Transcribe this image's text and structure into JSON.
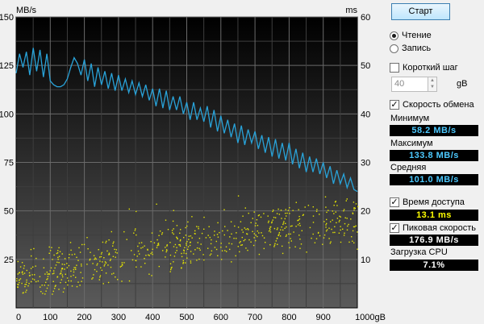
{
  "chart": {
    "left_unit": "MB/s",
    "right_unit": "ms",
    "x_unit_suffix": "gB",
    "y_left_ticks": [
      "25",
      "50",
      "75",
      "100",
      "125",
      "150"
    ],
    "y_right_ticks": [
      "10",
      "20",
      "30",
      "40",
      "50",
      "60"
    ],
    "x_ticks": [
      "0",
      "100",
      "200",
      "300",
      "400",
      "500",
      "600",
      "700",
      "800",
      "900",
      "1000gB"
    ],
    "colors": {
      "transfer": "#29a3d9",
      "access": "#e6e600",
      "background_top": "#000000",
      "background_bottom": "#5a5a5a",
      "grid": "#6a6a6a"
    }
  },
  "chart_data": {
    "type": "line",
    "xlabel": "gB",
    "ylabel": "MB/s",
    "xlim": [
      0,
      1000
    ],
    "ylim": [
      0,
      150
    ],
    "y2lim": [
      0,
      60
    ],
    "grid": true,
    "series": [
      {
        "name": "Скорость обмена",
        "axis": "left",
        "x": [
          0,
          10,
          20,
          30,
          40,
          50,
          60,
          70,
          80,
          90,
          100,
          110,
          120,
          130,
          140,
          150,
          160,
          170,
          180,
          190,
          200,
          210,
          220,
          230,
          240,
          250,
          260,
          270,
          280,
          290,
          300,
          310,
          320,
          330,
          340,
          350,
          360,
          370,
          380,
          390,
          400,
          410,
          420,
          430,
          440,
          450,
          460,
          470,
          480,
          490,
          500,
          510,
          520,
          530,
          540,
          550,
          560,
          570,
          580,
          590,
          600,
          610,
          620,
          630,
          640,
          650,
          660,
          670,
          680,
          690,
          700,
          710,
          720,
          730,
          740,
          750,
          760,
          770,
          780,
          790,
          800,
          810,
          820,
          830,
          840,
          850,
          860,
          870,
          880,
          890,
          900,
          910,
          920,
          930,
          940,
          950,
          960,
          970,
          980,
          990,
          1000
        ],
        "y": [
          121,
          131,
          124,
          132,
          120,
          134,
          122,
          133,
          119,
          131,
          117,
          115,
          114,
          114,
          115,
          118,
          124,
          129,
          126,
          120,
          128,
          117,
          126,
          114,
          124,
          115,
          122,
          113,
          121,
          112,
          120,
          112,
          118,
          111,
          117,
          110,
          116,
          109,
          115,
          107,
          113,
          104,
          113,
          103,
          112,
          102,
          109,
          102,
          109,
          100,
          106,
          97,
          106,
          97,
          103,
          96,
          104,
          93,
          102,
          91,
          99,
          90,
          97,
          88,
          95,
          85,
          94,
          84,
          92,
          85,
          91,
          82,
          89,
          80,
          88,
          78,
          87,
          77,
          85,
          76,
          85,
          74,
          82,
          72,
          80,
          70,
          78,
          70,
          77,
          69,
          75,
          67,
          73,
          64,
          71,
          64,
          69,
          62,
          67,
          61,
          60
        ]
      },
      {
        "name": "Время доступа",
        "axis": "right",
        "mode": "scatter",
        "seed": 7,
        "count": 650,
        "x_range": [
          0,
          1000
        ],
        "trend_ms": [
          [
            0,
            6
          ],
          [
            200,
            9.5
          ],
          [
            400,
            12
          ],
          [
            600,
            15
          ],
          [
            800,
            17
          ],
          [
            1000,
            18
          ]
        ],
        "spread_ms": 6,
        "outliers": [
          [
            330,
            20.5
          ],
          [
            350,
            20
          ],
          [
            410,
            21.5
          ],
          [
            460,
            20.2
          ],
          [
            650,
            23.2
          ],
          [
            880,
            20.4
          ],
          [
            905,
            23
          ],
          [
            1000,
            21
          ]
        ]
      }
    ]
  },
  "panel": {
    "start_button": "Старт",
    "mode_read": "Чтение",
    "mode_write": "Запись",
    "short_stroke": "Короткий шаг",
    "short_stroke_value": "40",
    "short_stroke_unit": "gB",
    "transfer_rate": "Скорость обмена",
    "min_label": "Минимум",
    "min_value": "58.2 MB/s",
    "max_label": "Максимум",
    "max_value": "133.8 MB/s",
    "avg_label": "Средняя",
    "avg_value": "101.0 MB/s",
    "access_time": "Время доступа",
    "access_value": "13.1 ms",
    "burst_rate": "Пиковая скорость",
    "burst_value": "176.9 MB/s",
    "cpu_label": "Загрузка CPU",
    "cpu_value": "7.1%",
    "check_mark": "✓",
    "spin_up": "▲",
    "spin_down": "▼"
  }
}
